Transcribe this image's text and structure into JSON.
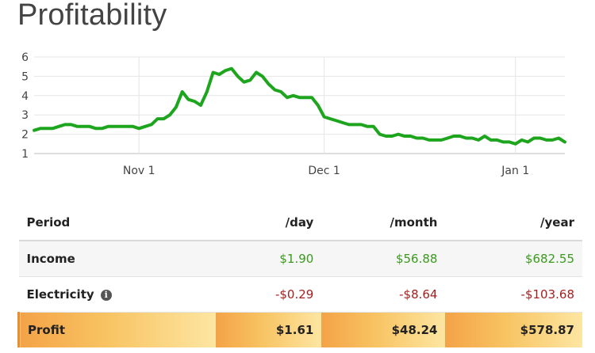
{
  "page": {
    "title": "Profitability"
  },
  "chart_data": {
    "type": "line",
    "ylim": [
      1,
      6
    ],
    "yticks": [
      "1",
      "2",
      "3",
      "4",
      "5",
      "6"
    ],
    "xticks": [
      {
        "label": "Nov 1",
        "day": 31
      },
      {
        "label": "Dec 1",
        "day": 61
      },
      {
        "label": "Jan 1",
        "day": 92
      }
    ],
    "xrange": [
      14,
      100
    ],
    "grid": true,
    "color": "#1ea51e",
    "series": [
      {
        "x": [
          14,
          15,
          16,
          17,
          18,
          19,
          20,
          21,
          22,
          23,
          24,
          25,
          26,
          27,
          28,
          29,
          30,
          31,
          32,
          33,
          34,
          35,
          36,
          37,
          38,
          39,
          40,
          41,
          42,
          43,
          44,
          45,
          46,
          47,
          48,
          49,
          50,
          51,
          52,
          53,
          54,
          55,
          56,
          57,
          58,
          59,
          60,
          61,
          62,
          63,
          64,
          65,
          66,
          67,
          68,
          69,
          70,
          71,
          72,
          73,
          74,
          75,
          76,
          77,
          78,
          79,
          80,
          81,
          82,
          83,
          84,
          85,
          86,
          87,
          88,
          89,
          90,
          91,
          92,
          93,
          94,
          95,
          96,
          97,
          98,
          99,
          100
        ],
        "y": [
          2.2,
          2.3,
          2.3,
          2.3,
          2.4,
          2.5,
          2.5,
          2.4,
          2.4,
          2.4,
          2.3,
          2.3,
          2.4,
          2.4,
          2.4,
          2.4,
          2.4,
          2.3,
          2.4,
          2.5,
          2.8,
          2.8,
          3.0,
          3.4,
          4.2,
          3.8,
          3.7,
          3.5,
          4.2,
          5.2,
          5.1,
          5.3,
          5.4,
          5.0,
          4.7,
          4.8,
          5.2,
          5.0,
          4.6,
          4.3,
          4.2,
          3.9,
          4.0,
          3.9,
          3.9,
          3.9,
          3.5,
          2.9,
          2.8,
          2.7,
          2.6,
          2.5,
          2.5,
          2.5,
          2.4,
          2.4,
          2.0,
          1.9,
          1.9,
          2.0,
          1.9,
          1.9,
          1.8,
          1.8,
          1.7,
          1.7,
          1.7,
          1.8,
          1.9,
          1.9,
          1.8,
          1.8,
          1.7,
          1.9,
          1.7,
          1.7,
          1.6,
          1.6,
          1.5,
          1.7,
          1.6,
          1.8,
          1.8,
          1.7,
          1.7,
          1.8,
          1.6
        ]
      }
    ]
  },
  "table": {
    "headers": {
      "period": "Period",
      "day": "/day",
      "month": "/month",
      "year": "/year"
    },
    "income": {
      "label": "Income",
      "day": "$1.90",
      "month": "$56.88",
      "year": "$682.55"
    },
    "electricity": {
      "label": "Electricity",
      "icon": "info-icon",
      "day": "-$0.29",
      "month": "-$8.64",
      "year": "-$103.68"
    },
    "profit": {
      "label": "Profit",
      "day": "$1.61",
      "month": "$48.24",
      "year": "$578.87"
    }
  }
}
